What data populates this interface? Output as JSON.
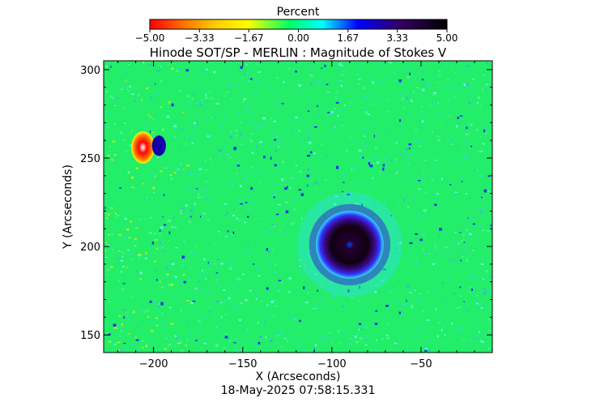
{
  "chart_data": {
    "type": "heatmap",
    "title": "Hinode SOT/SP - MERLIN : Magnitude of Stokes V",
    "xlabel": "X (Arcseconds)",
    "ylabel": "Y (Arcseconds)",
    "timestamp": "18-May-2025 07:58:15.331",
    "xlim": [
      -228,
      -10
    ],
    "ylim": [
      140,
      305
    ],
    "x_ticks": [
      -200,
      -150,
      -100,
      -50
    ],
    "x_tick_labels": [
      "−200",
      "−150",
      "−100",
      "−50"
    ],
    "y_ticks": [
      150,
      200,
      250,
      300
    ],
    "y_tick_labels": [
      "150",
      "200",
      "250",
      "300"
    ],
    "background_value": 0.8,
    "colorbar": {
      "title": "Percent",
      "min": -5.0,
      "max": 5.0,
      "tick_values": [
        -5.0,
        -3.33,
        -1.67,
        0.0,
        1.67,
        3.33,
        5.0
      ],
      "tick_labels": [
        "−5.00",
        "−3.33",
        "−1.67",
        "0.00",
        "1.67",
        "3.33",
        "5.00"
      ],
      "colors": [
        "#ff0000",
        "#ffcc00",
        "#ffff00",
        "#00ff66",
        "#00ffff",
        "#0000ff",
        "#330066",
        "#000000"
      ]
    },
    "features": [
      {
        "name": "sunspot",
        "x": -90,
        "y": 201,
        "radius": 19,
        "value": 4.9
      },
      {
        "name": "pore",
        "x": -206,
        "y": 256,
        "radius": 5,
        "value": -4.5
      },
      {
        "name": "pore",
        "x": -197,
        "y": 257,
        "radius": 3,
        "value": 3.5
      }
    ]
  }
}
